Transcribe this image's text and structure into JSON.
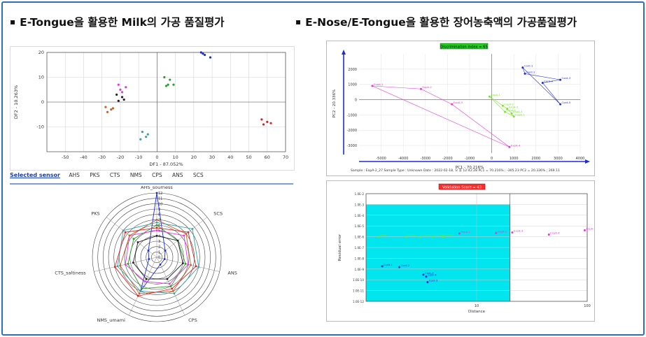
{
  "headings": {
    "left": "E-Tongue을 활용한 Milk의 가공 품질평가",
    "right": "E-Nose/E-Tongue을 활용한 장어농축액의 가공품질평가",
    "bullet": "▪"
  },
  "colors": {
    "frame": "#2f6fb5",
    "blue": "#1f2bd6",
    "green": "#2c9a2c",
    "magenta": "#e03ad8",
    "black": "#222222",
    "orange": "#c7602a",
    "teal": "#3aa3a3",
    "red": "#e02020",
    "lime": "#7be22a",
    "cyan": "#00e5ee",
    "badge_green": "#22cc22",
    "badge_red": "#ff2a2a"
  },
  "sensor_bar": {
    "label": "Selected sensor",
    "sensors": [
      "AHS",
      "PKS",
      "CTS",
      "NMS",
      "CPS",
      "ANS",
      "SCS"
    ]
  },
  "chart_data": [
    {
      "type": "scatter",
      "id": "milk_df",
      "xlabel": "DF1 - 87.052%",
      "ylabel": "DF2 - 10.263%",
      "xlim": [
        -60,
        70
      ],
      "ylim": [
        -20,
        20
      ],
      "xticks": [
        -50,
        -40,
        -30,
        -20,
        -10,
        0,
        10,
        20,
        30,
        40,
        50,
        60,
        70
      ],
      "yticks": [
        -10,
        0,
        10,
        20
      ],
      "grid": true,
      "series": [
        {
          "color": "blue",
          "points": [
            [
              24,
              20
            ],
            [
              26,
              19
            ],
            [
              29,
              18
            ],
            [
              25,
              19.5
            ]
          ]
        },
        {
          "color": "green",
          "points": [
            [
              4,
              10
            ],
            [
              7,
              9
            ],
            [
              6,
              7
            ],
            [
              9,
              7
            ],
            [
              5,
              6.5
            ]
          ]
        },
        {
          "color": "magenta",
          "points": [
            [
              -21,
              7
            ],
            [
              -17,
              6
            ],
            [
              -20,
              5
            ],
            [
              -19,
              4
            ]
          ]
        },
        {
          "color": "black",
          "points": [
            [
              -22,
              3
            ],
            [
              -19,
              2
            ],
            [
              -21,
              0.5
            ],
            [
              -18,
              1
            ]
          ]
        },
        {
          "color": "orange",
          "points": [
            [
              -28,
              -2
            ],
            [
              -25,
              -3
            ],
            [
              -27,
              -4
            ],
            [
              -24,
              -2.5
            ]
          ]
        },
        {
          "color": "teal",
          "points": [
            [
              -8,
              -12
            ],
            [
              -6,
              -14
            ],
            [
              -9,
              -15
            ],
            [
              -5,
              -13
            ]
          ]
        },
        {
          "color": "red",
          "points": [
            [
              57,
              -7
            ],
            [
              60,
              -8
            ],
            [
              58,
              -9
            ],
            [
              62,
              -8.5
            ]
          ]
        }
      ]
    },
    {
      "type": "radar",
      "id": "milk_radar",
      "axes": [
        "AHS_sourness",
        "SCS",
        "ANS",
        "CPS",
        "NMS_umami",
        "CTS_saltiness",
        "PKS"
      ],
      "rmax": 12,
      "rings": 12,
      "ticks": [
        0,
        1,
        2,
        3,
        4,
        5,
        6,
        7,
        8,
        9,
        10,
        11,
        12
      ],
      "series": [
        {
          "color": "blue",
          "values": [
            12,
            2,
            1.5,
            1.5,
            7,
            1.5,
            2
          ]
        },
        {
          "color": "green",
          "values": [
            6,
            5,
            5.5,
            6,
            6.5,
            5.5,
            5.5
          ]
        },
        {
          "color": "magenta",
          "values": [
            5,
            6.5,
            6,
            5.5,
            5,
            6,
            6.5
          ]
        },
        {
          "color": "orange",
          "values": [
            7,
            7,
            6.5,
            7,
            7.5,
            7,
            6.5
          ]
        },
        {
          "color": "teal",
          "values": [
            6.5,
            8.5,
            8,
            7.5,
            7,
            7.5,
            8
          ]
        },
        {
          "color": "red",
          "values": [
            5.5,
            7.5,
            7.5,
            6.5,
            8,
            8,
            7.5
          ]
        },
        {
          "color": "black",
          "values": [
            4,
            5,
            5,
            4.5,
            4.5,
            4.5,
            4.5
          ]
        }
      ]
    },
    {
      "type": "scatter",
      "id": "eel_pca",
      "badge": "Discrimination index = 65",
      "xlabel": "PC1 - 70.216%",
      "ylabel": "PC2 - 20.336%",
      "xlim": [
        -6000,
        4000
      ],
      "ylim": [
        -3500,
        3000
      ],
      "xticks": [
        -5000,
        -4000,
        -3000,
        -2000,
        -1000,
        0,
        1000,
        2000,
        3000,
        4000
      ],
      "yticks": [
        -3000,
        -2000,
        -1000,
        0,
        1000,
        2000
      ],
      "footer": "Sample : ExpA-2_27     Sample Type : Unknown     Date : 2022-02-18, 오 후 12:42:28     PC1 = 70.216% ; -305.23     PC2 = 20.336% ; 269.11",
      "labels": [
        "ExpA-1",
        "ExpA-2",
        "ExpA-3",
        "ExpA-4",
        "Cont-1",
        "Cont-2",
        "Cont-3",
        "Cont-4",
        "Cont-5"
      ],
      "series": [
        {
          "color": "blue",
          "points": [
            [
              1400,
              2100
            ],
            [
              1500,
              1700
            ],
            [
              3100,
              1300
            ],
            [
              2300,
              1100
            ],
            [
              3100,
              -300
            ]
          ]
        },
        {
          "color": "magenta",
          "points": [
            [
              -5400,
              900
            ],
            [
              -3200,
              700
            ],
            [
              -1800,
              -300
            ],
            [
              800,
              -3100
            ]
          ]
        },
        {
          "color": "lime",
          "points": [
            [
              -100,
              200
            ],
            [
              500,
              -400
            ],
            [
              700,
              -600
            ],
            [
              900,
              -900
            ],
            [
              1000,
              -1100
            ],
            [
              600,
              -800
            ]
          ]
        }
      ]
    },
    {
      "type": "scatter",
      "id": "eel_validation",
      "badge": "Validation Score = 43",
      "xlabel": "Distance",
      "ylabel": "Residual error",
      "xscale": "log",
      "yscale": "log",
      "xlim": [
        1,
        100
      ],
      "ylim": [
        1e-12,
        0.01
      ],
      "xticks": [
        10,
        100
      ],
      "yticks_labels": [
        "1.0E-2",
        "1.0E-3",
        "1.0E-4",
        "1.0E-5",
        "1.0E-6",
        "1.0E-7",
        "1.0E-8",
        "1.0E-9",
        "1.0E-10",
        "1.0E-11",
        "1.0E-12"
      ],
      "accept_region": {
        "x": [
          1,
          20
        ],
        "y": [
          1e-12,
          0.001
        ]
      },
      "labels": [
        "ExpA-1",
        "ExpA-2",
        "ExpA-3",
        "ExpA-4",
        "Cont-1",
        "Cont-2",
        "Cont-3",
        "Cont-4",
        "Cont-5"
      ],
      "series": [
        {
          "color": "lime",
          "points": [
            [
              1.3,
              1e-06
            ],
            [
              2.3,
              1e-06
            ],
            [
              3.1,
              1e-06
            ],
            [
              4.0,
              1e-06
            ],
            [
              5.0,
              1e-06
            ]
          ]
        },
        {
          "color": "magenta",
          "points": [
            [
              7,
              2e-06
            ],
            [
              15,
              2.2e-06
            ],
            [
              21,
              2.5e-06
            ],
            [
              45,
              1.6e-06
            ],
            [
              95,
              4e-06
            ]
          ]
        },
        {
          "color": "blue",
          "points": [
            [
              1.4,
              1.8e-09
            ],
            [
              2.0,
              1.5e-09
            ],
            [
              3.3,
              3e-10
            ],
            [
              3.5,
              2e-10
            ],
            [
              3.6,
              6e-11
            ]
          ]
        }
      ]
    }
  ]
}
